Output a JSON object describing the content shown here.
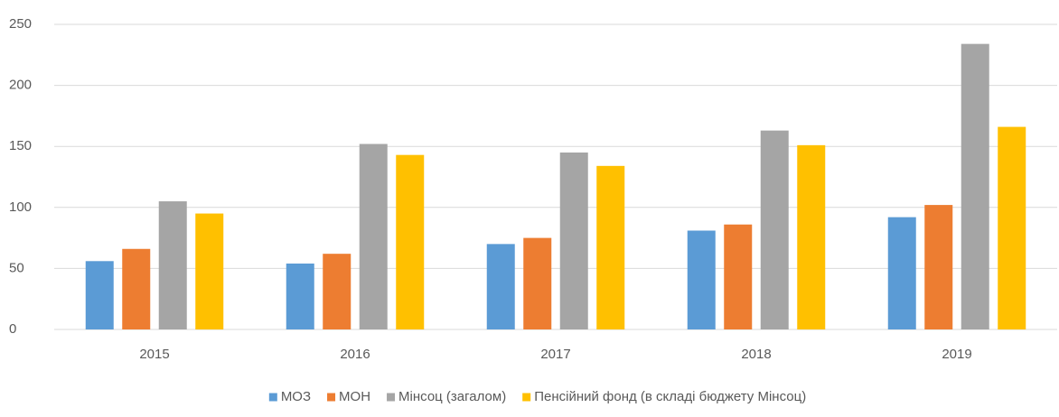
{
  "chart_data": {
    "type": "bar",
    "categories": [
      "2015",
      "2016",
      "2017",
      "2018",
      "2019"
    ],
    "series": [
      {
        "name": "МОЗ",
        "color": "#5b9bd5",
        "values": [
          56,
          54,
          70,
          81,
          92
        ]
      },
      {
        "name": "МОН",
        "color": "#ed7d31",
        "values": [
          66,
          62,
          75,
          86,
          102
        ]
      },
      {
        "name": "Мінсоц (загалом)",
        "color": "#a5a5a5",
        "values": [
          105,
          152,
          145,
          163,
          234
        ]
      },
      {
        "name": "Пенсійний фонд (в складі бюджету Мінсоц)",
        "color": "#ffc000",
        "values": [
          95,
          143,
          134,
          151,
          166
        ]
      }
    ],
    "ylim": [
      0,
      250
    ],
    "yticks": [
      0,
      50,
      100,
      150,
      200,
      250
    ],
    "grid": true,
    "legend": "bottom"
  }
}
